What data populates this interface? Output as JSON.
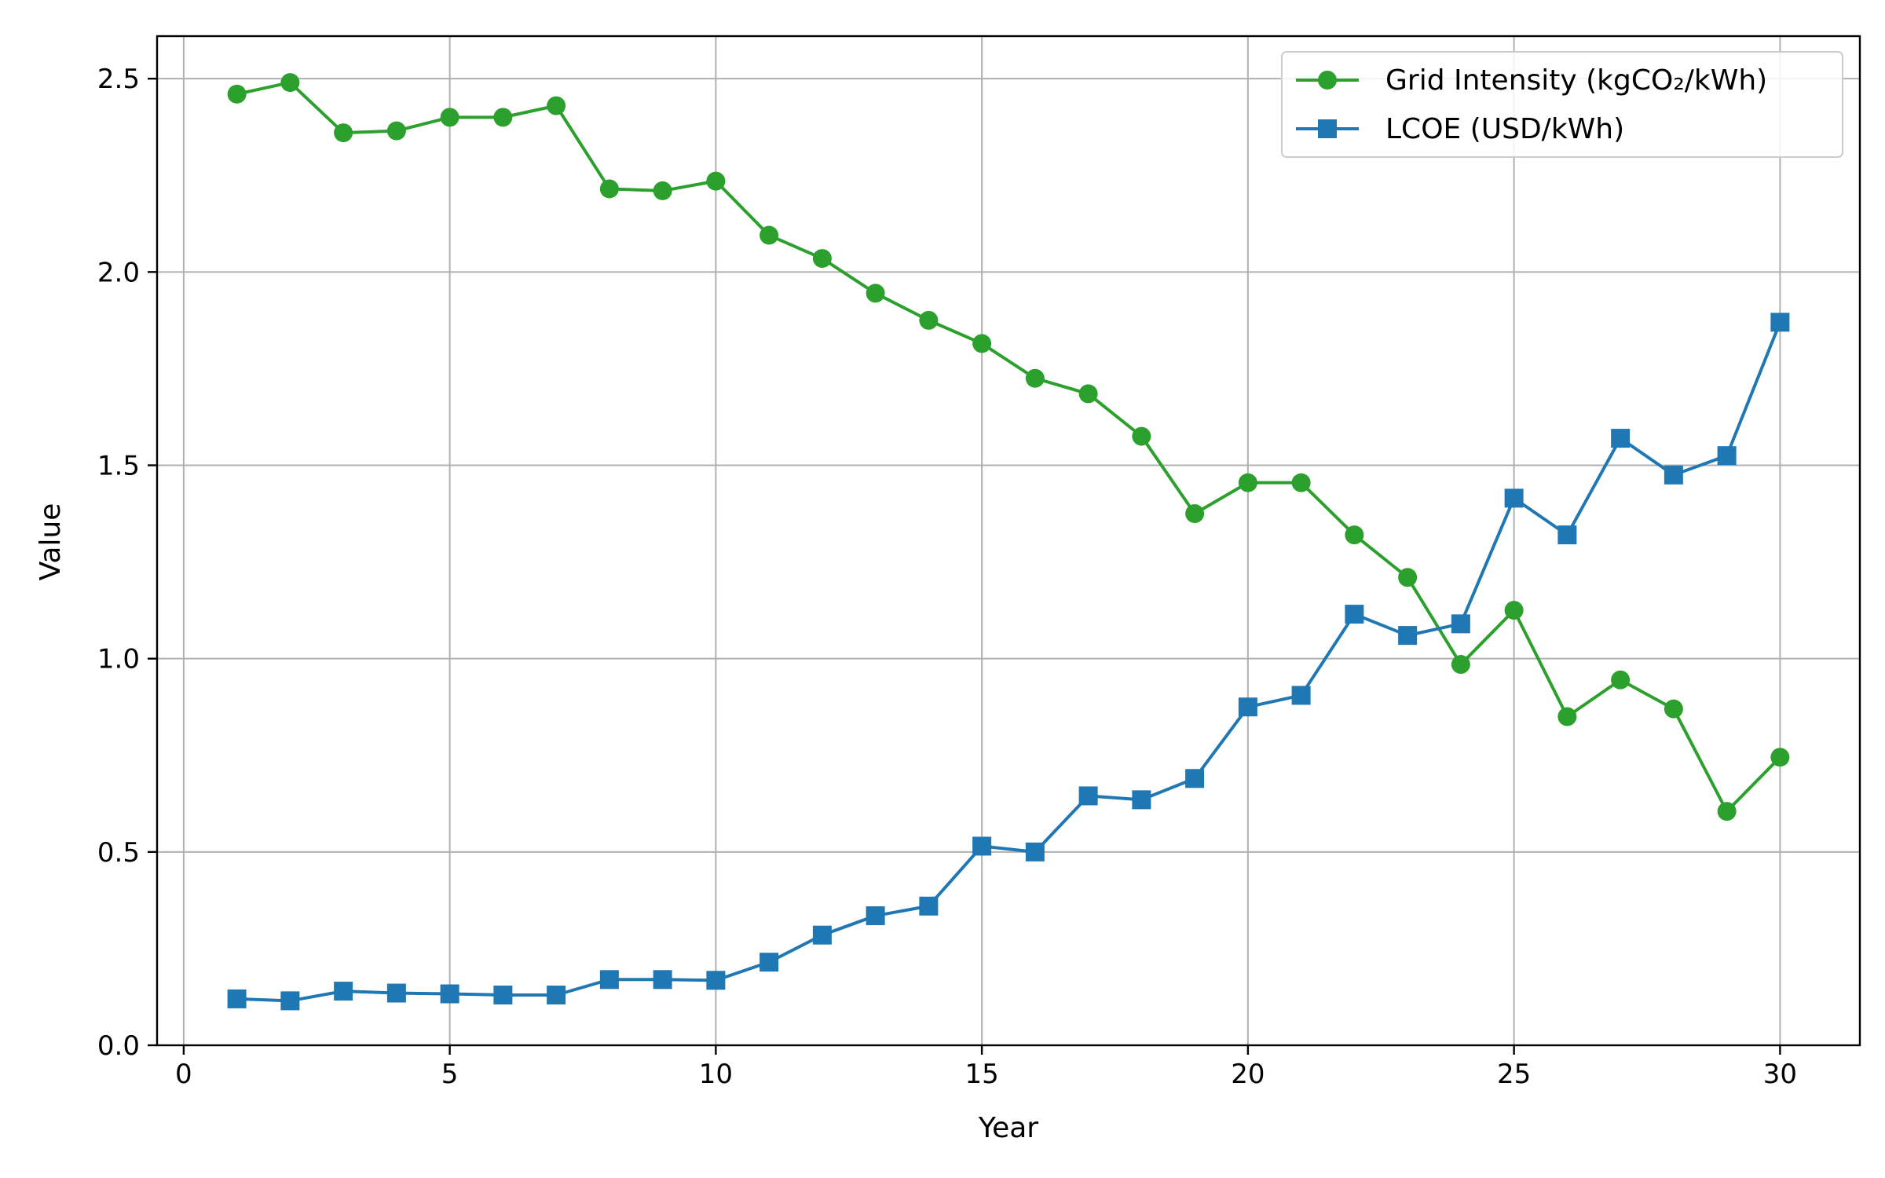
{
  "chart_data": {
    "type": "line",
    "title": "",
    "xlabel": "Year",
    "ylabel": "Value",
    "xlim": [
      -0.5,
      31.5
    ],
    "ylim": [
      0,
      2.61
    ],
    "xticks": [
      0,
      5,
      10,
      15,
      20,
      25,
      30
    ],
    "yticks": [
      0.0,
      0.5,
      1.0,
      1.5,
      2.0,
      2.5
    ],
    "xtick_labels": [
      "0",
      "5",
      "10",
      "15",
      "20",
      "25",
      "30"
    ],
    "ytick_labels": [
      "0.0",
      "0.5",
      "1.0",
      "1.5",
      "2.0",
      "2.5"
    ],
    "grid": true,
    "legend_position": "top-right",
    "x": [
      1,
      2,
      3,
      4,
      5,
      6,
      7,
      8,
      9,
      10,
      11,
      12,
      13,
      14,
      15,
      16,
      17,
      18,
      19,
      20,
      21,
      22,
      23,
      24,
      25,
      26,
      27,
      28,
      29,
      30
    ],
    "series": [
      {
        "name": "Grid Intensity (kgCO₂/kWh)",
        "color": "#2ca02c",
        "marker": "circle",
        "values": [
          2.46,
          2.49,
          2.36,
          2.365,
          2.4,
          2.4,
          2.43,
          2.215,
          2.21,
          2.235,
          2.095,
          2.035,
          1.945,
          1.875,
          1.815,
          1.725,
          1.685,
          1.575,
          1.375,
          1.455,
          1.455,
          1.32,
          1.21,
          0.985,
          1.125,
          0.85,
          0.945,
          0.87,
          0.605,
          0.745
        ]
      },
      {
        "name": "LCOE (USD/kWh)",
        "color": "#1f77b4",
        "marker": "square",
        "values": [
          0.12,
          0.115,
          0.14,
          0.135,
          0.133,
          0.13,
          0.13,
          0.17,
          0.17,
          0.168,
          0.215,
          0.285,
          0.335,
          0.36,
          0.515,
          0.5,
          0.645,
          0.635,
          0.69,
          0.875,
          0.905,
          1.115,
          1.06,
          1.09,
          1.415,
          1.32,
          1.57,
          1.475,
          1.525,
          1.87
        ]
      }
    ]
  }
}
